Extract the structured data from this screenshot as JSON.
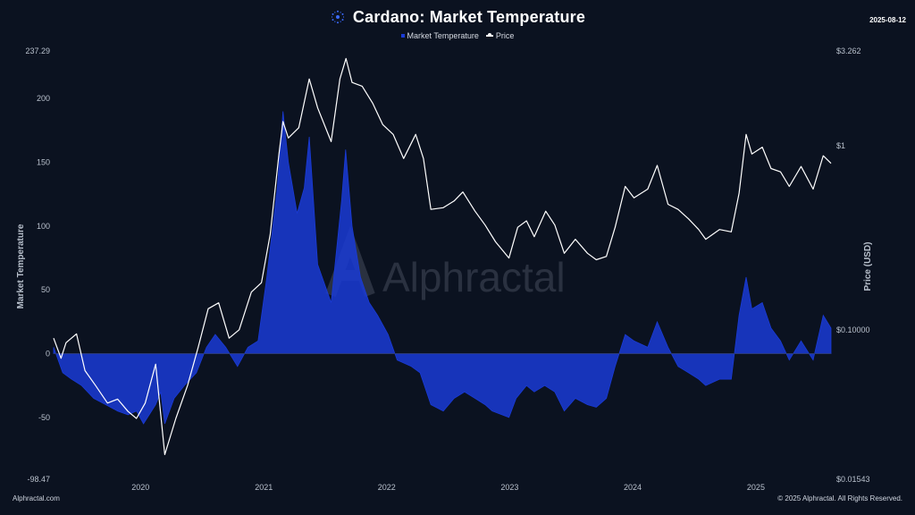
{
  "header": {
    "title": "Cardano: Market Temperature",
    "date": "2025-08-12"
  },
  "footer": {
    "left": "Alphractal.com",
    "right": "© 2025 Alphractal. All Rights Reserved."
  },
  "watermark": "Alphractal",
  "colors": {
    "background": "#0b1220",
    "temperature_fill": "#1a3bd6",
    "price_line": "#ffffff"
  },
  "chart_data": {
    "type": "area",
    "title": "Cardano: Market Temperature",
    "legend": {
      "placement": "top-center",
      "items": [
        "Market Temperature",
        "Price"
      ]
    },
    "x_axis": {
      "type": "date",
      "range": [
        "2019-04-18",
        "2025-08-12"
      ],
      "tick_labels": [
        "2020",
        "2021",
        "2022",
        "2023",
        "2024",
        "2025"
      ]
    },
    "y_left": {
      "label": "Market Temperature",
      "range": [
        -98.47,
        237.29
      ],
      "tick_labels": [
        "237.29",
        "200",
        "150",
        "100",
        "50",
        "0",
        "-50",
        "-98.47"
      ],
      "ticks": [
        237.29,
        200,
        150,
        100,
        50,
        0,
        -50,
        -98.47
      ]
    },
    "y_right": {
      "label": "Price (USD)",
      "scale": "log",
      "range": [
        0.01543,
        3.262
      ],
      "tick_labels": [
        "$3.262",
        "$1",
        "$0.10000",
        "$0.01543"
      ],
      "ticks": [
        3.262,
        1,
        0.1,
        0.01543
      ]
    },
    "grid": false,
    "series": [
      {
        "name": "Market Temperature",
        "type": "area",
        "points": [
          [
            "2019-04-18",
            5
          ],
          [
            "2019-05-15",
            -15
          ],
          [
            "2019-06-10",
            -20
          ],
          [
            "2019-07-10",
            -25
          ],
          [
            "2019-08-15",
            -35
          ],
          [
            "2019-09-20",
            -40
          ],
          [
            "2019-10-25",
            -45
          ],
          [
            "2019-11-25",
            -48
          ],
          [
            "2019-12-20",
            -45
          ],
          [
            "2020-01-10",
            -55
          ],
          [
            "2020-02-15",
            -40
          ],
          [
            "2020-03-01",
            -30
          ],
          [
            "2020-03-13",
            -55
          ],
          [
            "2020-04-10",
            -35
          ],
          [
            "2020-05-10",
            -25
          ],
          [
            "2020-06-15",
            -15
          ],
          [
            "2020-07-15",
            5
          ],
          [
            "2020-08-10",
            15
          ],
          [
            "2020-09-10",
            5
          ],
          [
            "2020-10-15",
            -10
          ],
          [
            "2020-11-15",
            5
          ],
          [
            "2020-12-15",
            10
          ],
          [
            "2021-01-10",
            60
          ],
          [
            "2021-02-10",
            130
          ],
          [
            "2021-02-27",
            190
          ],
          [
            "2021-03-15",
            150
          ],
          [
            "2021-04-10",
            110
          ],
          [
            "2021-05-01",
            130
          ],
          [
            "2021-05-16",
            170
          ],
          [
            "2021-06-10",
            70
          ],
          [
            "2021-07-20",
            40
          ],
          [
            "2021-08-20",
            120
          ],
          [
            "2021-09-01",
            160
          ],
          [
            "2021-09-20",
            100
          ],
          [
            "2021-10-15",
            60
          ],
          [
            "2021-11-10",
            40
          ],
          [
            "2021-12-05",
            30
          ],
          [
            "2022-01-05",
            15
          ],
          [
            "2022-02-01",
            -5
          ],
          [
            "2022-03-15",
            -10
          ],
          [
            "2022-04-10",
            -15
          ],
          [
            "2022-05-12",
            -40
          ],
          [
            "2022-06-18",
            -45
          ],
          [
            "2022-07-20",
            -35
          ],
          [
            "2022-08-20",
            -30
          ],
          [
            "2022-09-20",
            -35
          ],
          [
            "2022-10-20",
            -40
          ],
          [
            "2022-11-10",
            -45
          ],
          [
            "2022-12-30",
            -50
          ],
          [
            "2023-01-20",
            -35
          ],
          [
            "2023-02-20",
            -25
          ],
          [
            "2023-03-15",
            -30
          ],
          [
            "2023-04-15",
            -25
          ],
          [
            "2023-05-15",
            -30
          ],
          [
            "2023-06-12",
            -45
          ],
          [
            "2023-07-15",
            -35
          ],
          [
            "2023-08-20",
            -40
          ],
          [
            "2023-09-15",
            -42
          ],
          [
            "2023-10-15",
            -35
          ],
          [
            "2023-11-10",
            -10
          ],
          [
            "2023-12-10",
            15
          ],
          [
            "2024-01-05",
            10
          ],
          [
            "2024-02-15",
            5
          ],
          [
            "2024-03-14",
            25
          ],
          [
            "2024-04-15",
            5
          ],
          [
            "2024-05-15",
            -10
          ],
          [
            "2024-06-15",
            -15
          ],
          [
            "2024-07-15",
            -20
          ],
          [
            "2024-08-05",
            -25
          ],
          [
            "2024-09-15",
            -20
          ],
          [
            "2024-10-20",
            -20
          ],
          [
            "2024-11-12",
            30
          ],
          [
            "2024-12-03",
            60
          ],
          [
            "2024-12-20",
            35
          ],
          [
            "2025-01-20",
            40
          ],
          [
            "2025-02-15",
            20
          ],
          [
            "2025-03-15",
            10
          ],
          [
            "2025-04-10",
            -5
          ],
          [
            "2025-05-15",
            10
          ],
          [
            "2025-06-20",
            -5
          ],
          [
            "2025-07-20",
            30
          ],
          [
            "2025-08-12",
            20
          ]
        ]
      },
      {
        "name": "Price",
        "type": "line",
        "points": [
          [
            "2019-04-18",
            0.09
          ],
          [
            "2019-05-10",
            0.07
          ],
          [
            "2019-05-25",
            0.085
          ],
          [
            "2019-06-25",
            0.095
          ],
          [
            "2019-07-20",
            0.06
          ],
          [
            "2019-08-20",
            0.05
          ],
          [
            "2019-09-25",
            0.04
          ],
          [
            "2019-10-25",
            0.042
          ],
          [
            "2019-11-25",
            0.036
          ],
          [
            "2019-12-20",
            0.033
          ],
          [
            "2020-01-15",
            0.04
          ],
          [
            "2020-02-15",
            0.065
          ],
          [
            "2020-03-13",
            0.021
          ],
          [
            "2020-04-15",
            0.033
          ],
          [
            "2020-05-20",
            0.05
          ],
          [
            "2020-06-20",
            0.08
          ],
          [
            "2020-07-20",
            0.13
          ],
          [
            "2020-08-20",
            0.14
          ],
          [
            "2020-09-20",
            0.09
          ],
          [
            "2020-10-20",
            0.1
          ],
          [
            "2020-11-25",
            0.16
          ],
          [
            "2020-12-25",
            0.18
          ],
          [
            "2021-01-20",
            0.33
          ],
          [
            "2021-02-15",
            0.9
          ],
          [
            "2021-02-27",
            1.35
          ],
          [
            "2021-03-15",
            1.1
          ],
          [
            "2021-04-15",
            1.25
          ],
          [
            "2021-05-16",
            2.3
          ],
          [
            "2021-06-10",
            1.6
          ],
          [
            "2021-07-20",
            1.05
          ],
          [
            "2021-08-15",
            2.3
          ],
          [
            "2021-09-02",
            2.97
          ],
          [
            "2021-09-20",
            2.2
          ],
          [
            "2021-10-20",
            2.1
          ],
          [
            "2021-11-20",
            1.7
          ],
          [
            "2021-12-20",
            1.3
          ],
          [
            "2022-01-20",
            1.15
          ],
          [
            "2022-02-20",
            0.85
          ],
          [
            "2022-03-28",
            1.15
          ],
          [
            "2022-04-20",
            0.85
          ],
          [
            "2022-05-12",
            0.45
          ],
          [
            "2022-06-18",
            0.46
          ],
          [
            "2022-07-20",
            0.5
          ],
          [
            "2022-08-15",
            0.56
          ],
          [
            "2022-09-20",
            0.44
          ],
          [
            "2022-10-20",
            0.37
          ],
          [
            "2022-11-20",
            0.3
          ],
          [
            "2022-12-30",
            0.245
          ],
          [
            "2023-01-25",
            0.36
          ],
          [
            "2023-02-20",
            0.39
          ],
          [
            "2023-03-15",
            0.32
          ],
          [
            "2023-04-18",
            0.44
          ],
          [
            "2023-05-15",
            0.37
          ],
          [
            "2023-06-12",
            0.26
          ],
          [
            "2023-07-15",
            0.31
          ],
          [
            "2023-08-20",
            0.26
          ],
          [
            "2023-09-15",
            0.24
          ],
          [
            "2023-10-15",
            0.25
          ],
          [
            "2023-11-10",
            0.36
          ],
          [
            "2023-12-10",
            0.6
          ],
          [
            "2024-01-05",
            0.52
          ],
          [
            "2024-02-15",
            0.58
          ],
          [
            "2024-03-14",
            0.78
          ],
          [
            "2024-04-15",
            0.48
          ],
          [
            "2024-05-15",
            0.45
          ],
          [
            "2024-06-15",
            0.4
          ],
          [
            "2024-07-15",
            0.35
          ],
          [
            "2024-08-05",
            0.31
          ],
          [
            "2024-09-15",
            0.35
          ],
          [
            "2024-10-20",
            0.34
          ],
          [
            "2024-11-12",
            0.55
          ],
          [
            "2024-12-03",
            1.15
          ],
          [
            "2024-12-20",
            0.9
          ],
          [
            "2025-01-20",
            0.98
          ],
          [
            "2025-02-15",
            0.75
          ],
          [
            "2025-03-15",
            0.72
          ],
          [
            "2025-04-10",
            0.6
          ],
          [
            "2025-05-15",
            0.77
          ],
          [
            "2025-06-20",
            0.58
          ],
          [
            "2025-07-20",
            0.88
          ],
          [
            "2025-08-12",
            0.8
          ]
        ]
      }
    ]
  }
}
